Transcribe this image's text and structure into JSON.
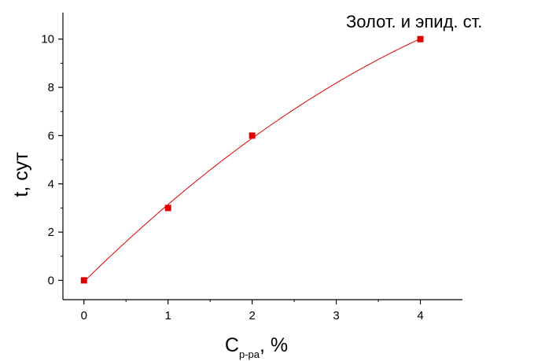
{
  "chart_data": {
    "type": "scatter",
    "title": "Золот. и эпид. ст.",
    "xlabel": {
      "main": "C",
      "sub": "р-ра",
      "suffix": ", %"
    },
    "ylabel": "t, сут",
    "x": [
      0,
      1,
      2,
      4
    ],
    "series": [
      {
        "values": [
          0,
          3,
          6,
          10
        ],
        "color": "#e00000",
        "marker": "square",
        "fit": "smooth-curve"
      }
    ],
    "xlim": [
      -0.25,
      4.5
    ],
    "ylim": [
      -0.8,
      11.1
    ],
    "xticks": [
      "0",
      "1",
      "2",
      "3",
      "4"
    ],
    "yticks": [
      "0",
      "2",
      "4",
      "6",
      "8",
      "10"
    ],
    "grid": false,
    "legend": "none"
  },
  "colors": {
    "series": "#e00000",
    "axis": "#000000"
  }
}
